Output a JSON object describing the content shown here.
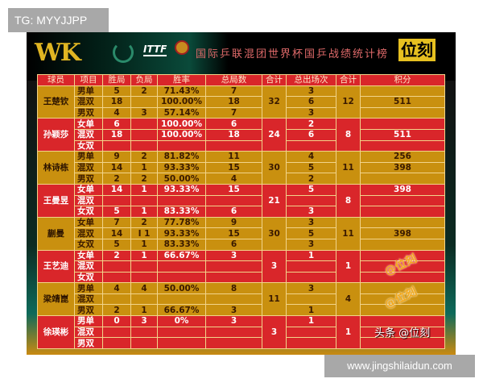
{
  "overlay_tag": "TG: MYYJJPP",
  "site_banner": "www.jingshilaidun.com",
  "header": {
    "logo": "WK",
    "itff_logo": "ITTF",
    "title": "国际乒联混团世界杯国乒战绩统计榜",
    "brand": "位刻"
  },
  "watermarks": {
    "diagonal": "@位刻",
    "corner": "头条 @位刻"
  },
  "colors": {
    "gold": "#c9900f",
    "red": "#d9262a",
    "header": "#d9262a"
  },
  "columns": [
    "球员",
    "项目",
    "胜局",
    "负局",
    "胜率",
    "总局数",
    "合计",
    "总出场次",
    "合计",
    "积分"
  ],
  "players": [
    {
      "name": "王楚钦",
      "color": "gold",
      "total_games": "32",
      "total_apps": "12",
      "rows": [
        {
          "event": "男单",
          "wins": "5",
          "losses": "2",
          "rate": "71.43%",
          "games": "7",
          "apps": "3",
          "points": ""
        },
        {
          "event": "混双",
          "wins": "18",
          "losses": "",
          "rate": "100.00%",
          "games": "18",
          "apps": "6",
          "points": "511"
        },
        {
          "event": "男双",
          "wins": "4",
          "losses": "3",
          "rate": "57.14%",
          "games": "7",
          "apps": "3",
          "points": ""
        }
      ]
    },
    {
      "name": "孙颖莎",
      "color": "red",
      "total_games": "24",
      "total_apps": "8",
      "rows": [
        {
          "event": "女单",
          "wins": "6",
          "losses": "",
          "rate": "100.00%",
          "games": "6",
          "apps": "2",
          "points": ""
        },
        {
          "event": "混双",
          "wins": "18",
          "losses": "",
          "rate": "100.00%",
          "games": "18",
          "apps": "6",
          "points": "511"
        },
        {
          "event": "女双",
          "wins": "",
          "losses": "",
          "rate": "",
          "games": "",
          "apps": "",
          "points": ""
        }
      ]
    },
    {
      "name": "林诗栋",
      "color": "gold",
      "total_games": "30",
      "total_apps": "11",
      "rows": [
        {
          "event": "男单",
          "wins": "9",
          "losses": "2",
          "rate": "81.82%",
          "games": "11",
          "apps": "4",
          "points": "256"
        },
        {
          "event": "混双",
          "wins": "14",
          "losses": "1",
          "rate": "93.33%",
          "games": "15",
          "apps": "5",
          "points": "398"
        },
        {
          "event": "男双",
          "wins": "2",
          "losses": "2",
          "rate": "50.00%",
          "games": "4",
          "apps": "2",
          "points": ""
        }
      ]
    },
    {
      "name": "王曼昱",
      "color": "red",
      "total_games": "21",
      "total_apps": "8",
      "rows": [
        {
          "event": "女单",
          "wins": "14",
          "losses": "1",
          "rate": "93.33%",
          "games": "15",
          "apps": "5",
          "points": "398"
        },
        {
          "event": "混双",
          "wins": "",
          "losses": "",
          "rate": "",
          "games": "",
          "apps": "",
          "points": ""
        },
        {
          "event": "女双",
          "wins": "5",
          "losses": "1",
          "rate": "83.33%",
          "games": "6",
          "apps": "3",
          "points": ""
        }
      ]
    },
    {
      "name": "蒯曼",
      "color": "gold",
      "total_games": "30",
      "total_apps": "11",
      "rows": [
        {
          "event": "女单",
          "wins": "7",
          "losses": "2",
          "rate": "77.78%",
          "games": "9",
          "apps": "3",
          "points": ""
        },
        {
          "event": "混双",
          "wins": "14",
          "losses": "I 1",
          "rate": "93.33%",
          "games": "15",
          "apps": "5",
          "points": "398"
        },
        {
          "event": "女双",
          "wins": "5",
          "losses": "1",
          "rate": "83.33%",
          "games": "6",
          "apps": "3",
          "points": ""
        }
      ]
    },
    {
      "name": "王艺迪",
      "color": "red",
      "total_games": "3",
      "total_apps": "1",
      "rows": [
        {
          "event": "女单",
          "wins": "2",
          "losses": "1",
          "rate": "66.67%",
          "games": "3",
          "apps": "1",
          "points": ""
        },
        {
          "event": "混双",
          "wins": "",
          "losses": "",
          "rate": "",
          "games": "",
          "apps": "",
          "points": ""
        },
        {
          "event": "女双",
          "wins": "",
          "losses": "",
          "rate": "",
          "games": "",
          "apps": "",
          "points": ""
        }
      ]
    },
    {
      "name": "梁靖崑",
      "color": "gold",
      "total_games": "11",
      "total_apps": "4",
      "rows": [
        {
          "event": "男单",
          "wins": "4",
          "losses": "4",
          "rate": "50.00%",
          "games": "8",
          "apps": "3",
          "points": ""
        },
        {
          "event": "混双",
          "wins": "",
          "losses": "",
          "rate": "",
          "games": "",
          "apps": "",
          "points": ""
        },
        {
          "event": "男双",
          "wins": "2",
          "losses": "1",
          "rate": "66.67%",
          "games": "3",
          "apps": "1",
          "points": ""
        }
      ]
    },
    {
      "name": "徐瑛彬",
      "color": "red",
      "total_games": "3",
      "total_apps": "1",
      "rows": [
        {
          "event": "男单",
          "wins": "0",
          "losses": "3",
          "rate": "0%",
          "games": "3",
          "apps": "1",
          "points": ""
        },
        {
          "event": "混双",
          "wins": "",
          "losses": "",
          "rate": "",
          "games": "",
          "apps": "",
          "points": ""
        },
        {
          "event": "男双",
          "wins": "",
          "losses": "",
          "rate": "",
          "games": "",
          "apps": "",
          "points": ""
        }
      ]
    }
  ]
}
